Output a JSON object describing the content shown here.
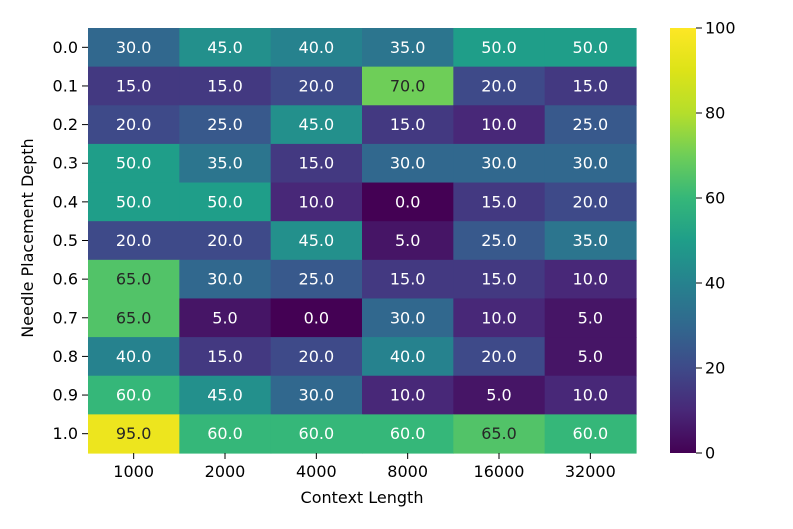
{
  "chart_data": {
    "type": "heatmap",
    "xlabel": "Context Length",
    "ylabel": "Needle Placement Depth",
    "x_categories": [
      "1000",
      "2000",
      "4000",
      "8000",
      "16000",
      "32000"
    ],
    "y_categories": [
      "0.0",
      "0.1",
      "0.2",
      "0.3",
      "0.4",
      "0.5",
      "0.6",
      "0.7",
      "0.8",
      "0.9",
      "1.0"
    ],
    "values": [
      [
        30.0,
        45.0,
        40.0,
        35.0,
        50.0,
        50.0
      ],
      [
        15.0,
        15.0,
        20.0,
        70.0,
        20.0,
        15.0
      ],
      [
        20.0,
        25.0,
        45.0,
        15.0,
        10.0,
        25.0
      ],
      [
        50.0,
        35.0,
        15.0,
        30.0,
        30.0,
        30.0
      ],
      [
        50.0,
        50.0,
        10.0,
        0.0,
        15.0,
        20.0
      ],
      [
        20.0,
        20.0,
        45.0,
        5.0,
        25.0,
        35.0
      ],
      [
        65.0,
        30.0,
        25.0,
        15.0,
        15.0,
        10.0
      ],
      [
        65.0,
        5.0,
        0.0,
        30.0,
        10.0,
        5.0
      ],
      [
        40.0,
        15.0,
        20.0,
        40.0,
        20.0,
        5.0
      ],
      [
        60.0,
        45.0,
        30.0,
        10.0,
        5.0,
        10.0
      ],
      [
        95.0,
        60.0,
        60.0,
        60.0,
        65.0,
        60.0
      ]
    ],
    "colorbar": {
      "range": [
        0,
        100
      ],
      "ticks": [
        "0",
        "20",
        "40",
        "60",
        "80",
        "100"
      ],
      "colormap": "viridis"
    },
    "grid": false,
    "legend": "colorbar-right"
  }
}
